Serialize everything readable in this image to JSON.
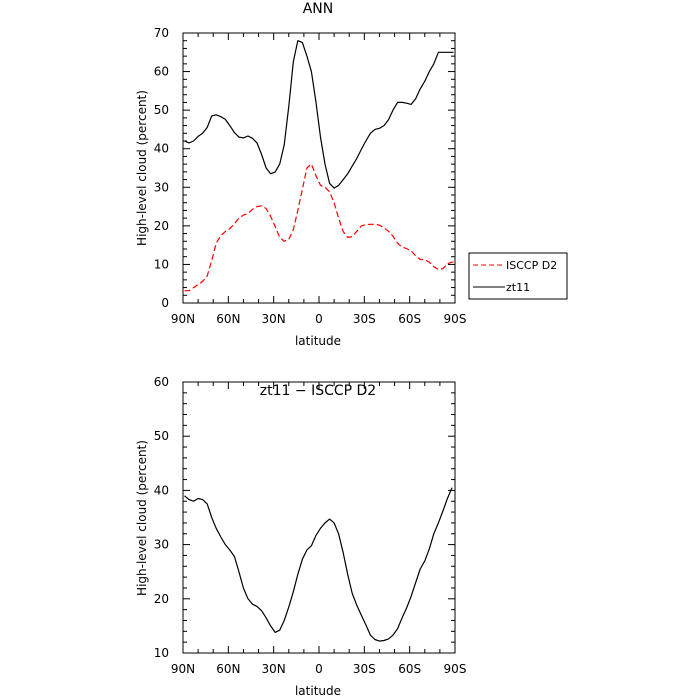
{
  "chart_data": [
    {
      "type": "line",
      "title": "ANN",
      "xlabel": "latitude",
      "ylabel": "High-level cloud (percent)",
      "xlim": [
        90,
        -90
      ],
      "ylim": [
        0,
        70
      ],
      "x_ticks": [
        90,
        60,
        30,
        0,
        -30,
        -60,
        -90
      ],
      "x_tick_labels": [
        "90N",
        "60N",
        "30N",
        "0",
        "30S",
        "60S",
        "90S"
      ],
      "y_ticks": [
        0,
        10,
        20,
        30,
        40,
        50,
        60,
        70
      ],
      "y_tick_labels": [
        "0",
        "10",
        "20",
        "30",
        "40",
        "50",
        "60",
        "70"
      ],
      "grid": false,
      "legend_position": "outside-right",
      "series": [
        {
          "name": "ISCCP D2",
          "color": "#ff0000",
          "dash": "dashed",
          "x": [
            89,
            86,
            83,
            80,
            77,
            74,
            71,
            68,
            65,
            62,
            59,
            56,
            53,
            50,
            47,
            44,
            41,
            38,
            35,
            32,
            29,
            26,
            23,
            20,
            17,
            14,
            11,
            8,
            5,
            2,
            -1,
            -4,
            -7,
            -10,
            -13,
            -16,
            -19,
            -22,
            -25,
            -28,
            -31,
            -34,
            -37,
            -40,
            -43,
            -46,
            -49,
            -52,
            -55,
            -58,
            -61,
            -64,
            -67,
            -70,
            -73,
            -76,
            -79,
            -82,
            -85,
            -88,
            -89
          ],
          "y": [
            3.2,
            3.2,
            4,
            4.8,
            5.6,
            7,
            11,
            15.5,
            17.5,
            18.5,
            19.3,
            20.5,
            22,
            22.8,
            23.2,
            24.3,
            25,
            25.2,
            24.5,
            22.5,
            19.8,
            17,
            16,
            16.5,
            19,
            24,
            29.5,
            35,
            36,
            33,
            30.5,
            30,
            28.8,
            26,
            22,
            18.5,
            17,
            17.2,
            18.6,
            20,
            20.3,
            20.4,
            20.4,
            20.2,
            19.5,
            18.6,
            17.3,
            15.5,
            14.5,
            14.1,
            13.5,
            12.2,
            11.3,
            11.2,
            10.6,
            9.4,
            8.7,
            8.9,
            10.2,
            10.6,
            10.6
          ]
        },
        {
          "name": "zt11",
          "color": "#000000",
          "dash": "solid",
          "x": [
            89,
            86,
            83,
            80,
            77,
            74,
            71,
            68,
            65,
            62,
            59,
            56,
            53,
            50,
            47,
            44,
            41,
            38,
            35,
            32,
            29,
            26,
            23,
            20,
            17,
            14,
            11,
            8,
            5,
            2,
            -1,
            -4,
            -7,
            -10,
            -13,
            -16,
            -19,
            -22,
            -25,
            -28,
            -31,
            -34,
            -37,
            -40,
            -43,
            -46,
            -49,
            -52,
            -55,
            -58,
            -61,
            -64,
            -67,
            -70,
            -73,
            -76,
            -79,
            -82,
            -85,
            -88,
            -89
          ],
          "y": [
            42,
            41.5,
            42,
            43.2,
            44,
            45.5,
            48.5,
            48.8,
            48.3,
            47.6,
            46,
            44.2,
            43,
            42.8,
            43.3,
            42.7,
            41.5,
            38.5,
            35,
            33.5,
            34,
            36,
            41,
            51,
            62.5,
            68,
            67.5,
            64,
            60,
            52,
            43,
            36,
            31,
            29.8,
            30.5,
            32,
            33.5,
            35.5,
            37.5,
            39.8,
            42,
            44,
            45,
            45.3,
            46,
            47.5,
            50,
            52,
            52,
            51.8,
            51.5,
            53,
            55.5,
            57.5,
            60,
            62,
            65,
            65,
            65,
            65,
            65
          ]
        }
      ]
    },
    {
      "type": "line",
      "title": "zt11 − ISCCP D2",
      "xlabel": "latitude",
      "ylabel": "High-level cloud (percent)",
      "xlim": [
        90,
        -90
      ],
      "ylim": [
        10,
        60
      ],
      "x_ticks": [
        90,
        60,
        30,
        0,
        -30,
        -60,
        -90
      ],
      "x_tick_labels": [
        "90N",
        "60N",
        "30N",
        "0",
        "30S",
        "60S",
        "90S"
      ],
      "y_ticks": [
        10,
        20,
        30,
        40,
        50,
        60
      ],
      "y_tick_labels": [
        "10",
        "20",
        "30",
        "40",
        "50",
        "60"
      ],
      "grid": false,
      "series": [
        {
          "color": "#000000",
          "dash": "solid",
          "x": [
            89,
            86,
            83,
            80,
            77,
            74,
            71,
            68,
            65,
            62,
            59,
            56,
            53,
            50,
            47,
            44,
            41,
            38,
            35,
            32,
            29,
            26,
            23,
            20,
            17,
            14,
            11,
            8,
            5,
            2,
            -1,
            -4,
            -7,
            -10,
            -13,
            -16,
            -19,
            -22,
            -25,
            -28,
            -31,
            -34,
            -37,
            -40,
            -43,
            -46,
            -49,
            -52,
            -55,
            -58,
            -61,
            -64,
            -67,
            -70,
            -73,
            -76,
            -79,
            -82,
            -85,
            -88
          ],
          "y": [
            39,
            38.3,
            38,
            38.5,
            38.3,
            37.5,
            35,
            33,
            31.4,
            30,
            29,
            27.8,
            25,
            22,
            20,
            19,
            18.6,
            17.8,
            16.5,
            15,
            13.8,
            14.2,
            16,
            18.5,
            21.3,
            24.5,
            27.3,
            29,
            29.8,
            31.7,
            33,
            34,
            34.7,
            34,
            32,
            28.5,
            24.5,
            21,
            18.8,
            17,
            15.2,
            13.3,
            12.5,
            12.2,
            12.3,
            12.6,
            13.3,
            14.5,
            16.5,
            18.3,
            20.5,
            23,
            25.5,
            27,
            29.2,
            32,
            34,
            36.2,
            38.5,
            40.5
          ]
        }
      ]
    }
  ]
}
